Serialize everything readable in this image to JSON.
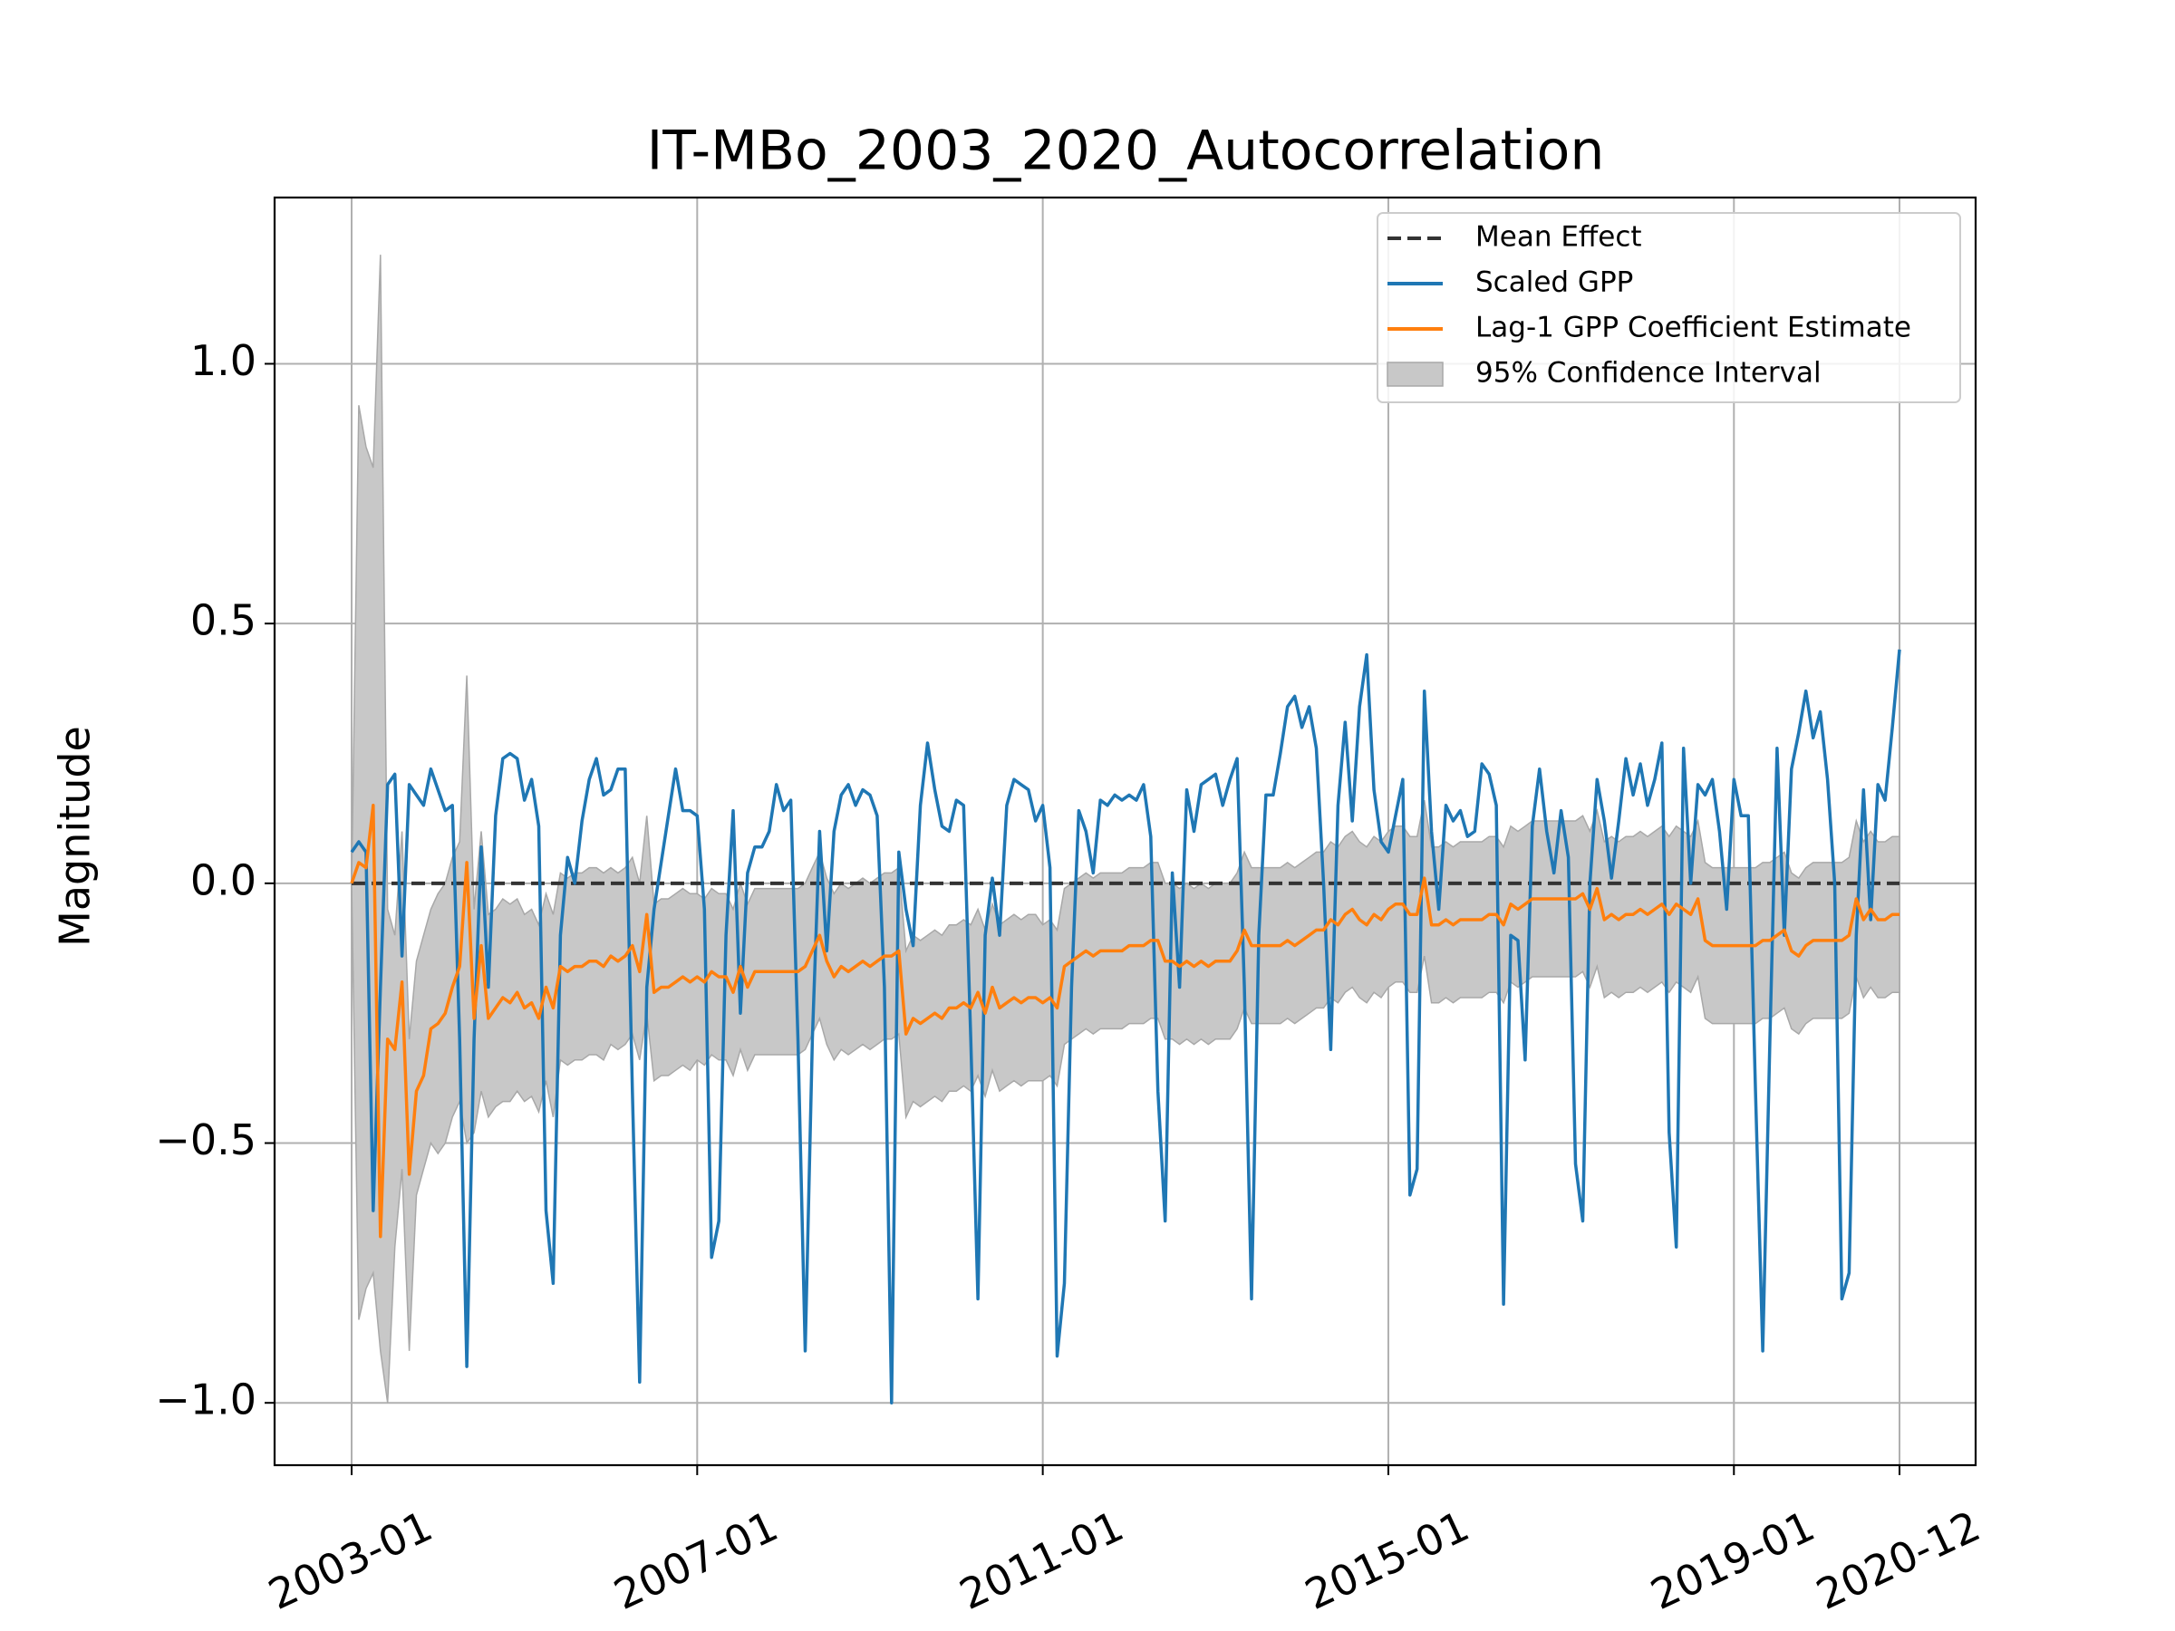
{
  "chart_data": {
    "type": "line",
    "title": "IT-MBo_2003_2020_Autocorrelation",
    "ylabel": "Magnitude",
    "x": [
      "2003-01",
      "2003-02",
      "2003-03",
      "2003-04",
      "2003-05",
      "2003-06",
      "2003-07",
      "2003-08",
      "2003-09",
      "2003-10",
      "2003-11",
      "2003-12",
      "2004-01",
      "2004-02",
      "2004-03",
      "2004-04",
      "2004-05",
      "2004-06",
      "2004-07",
      "2004-08",
      "2004-09",
      "2004-10",
      "2004-11",
      "2004-12",
      "2005-01",
      "2005-02",
      "2005-03",
      "2005-04",
      "2005-05",
      "2005-06",
      "2005-07",
      "2005-08",
      "2005-09",
      "2005-10",
      "2005-11",
      "2005-12",
      "2006-01",
      "2006-02",
      "2006-03",
      "2006-04",
      "2006-05",
      "2006-06",
      "2006-07",
      "2006-08",
      "2006-09",
      "2006-10",
      "2006-11",
      "2006-12",
      "2007-01",
      "2007-02",
      "2007-03",
      "2007-04",
      "2007-05",
      "2007-06",
      "2007-07",
      "2007-08",
      "2007-09",
      "2007-10",
      "2007-11",
      "2007-12",
      "2008-01",
      "2008-02",
      "2008-03",
      "2008-04",
      "2008-05",
      "2008-06",
      "2008-07",
      "2008-08",
      "2008-09",
      "2008-10",
      "2008-11",
      "2008-12",
      "2009-01",
      "2009-02",
      "2009-03",
      "2009-04",
      "2009-05",
      "2009-06",
      "2009-07",
      "2009-08",
      "2009-09",
      "2009-10",
      "2009-11",
      "2009-12",
      "2010-01",
      "2010-02",
      "2010-03",
      "2010-04",
      "2010-05",
      "2010-06",
      "2010-07",
      "2010-08",
      "2010-09",
      "2010-10",
      "2010-11",
      "2010-12",
      "2011-01",
      "2011-02",
      "2011-03",
      "2011-04",
      "2011-05",
      "2011-06",
      "2011-07",
      "2011-08",
      "2011-09",
      "2011-10",
      "2011-11",
      "2011-12",
      "2012-01",
      "2012-02",
      "2012-03",
      "2012-04",
      "2012-05",
      "2012-06",
      "2012-07",
      "2012-08",
      "2012-09",
      "2012-10",
      "2012-11",
      "2012-12",
      "2013-01",
      "2013-02",
      "2013-03",
      "2013-04",
      "2013-05",
      "2013-06",
      "2013-07",
      "2013-08",
      "2013-09",
      "2013-10",
      "2013-11",
      "2013-12",
      "2014-01",
      "2014-02",
      "2014-03",
      "2014-04",
      "2014-05",
      "2014-06",
      "2014-07",
      "2014-08",
      "2014-09",
      "2014-10",
      "2014-11",
      "2014-12",
      "2015-01",
      "2015-02",
      "2015-03",
      "2015-04",
      "2015-05",
      "2015-06",
      "2015-07",
      "2015-08",
      "2015-09",
      "2015-10",
      "2015-11",
      "2015-12",
      "2016-01",
      "2016-02",
      "2016-03",
      "2016-04",
      "2016-05",
      "2016-06",
      "2016-07",
      "2016-08",
      "2016-09",
      "2016-10",
      "2016-11",
      "2016-12",
      "2017-01",
      "2017-02",
      "2017-03",
      "2017-04",
      "2017-05",
      "2017-06",
      "2017-07",
      "2017-08",
      "2017-09",
      "2017-10",
      "2017-11",
      "2017-12",
      "2018-01",
      "2018-02",
      "2018-03",
      "2018-04",
      "2018-05",
      "2018-06",
      "2018-07",
      "2018-08",
      "2018-09",
      "2018-10",
      "2018-11",
      "2018-12",
      "2019-01",
      "2019-02",
      "2019-03",
      "2019-04",
      "2019-05",
      "2019-06",
      "2019-07",
      "2019-08",
      "2019-09",
      "2019-10",
      "2019-11",
      "2019-12",
      "2020-01",
      "2020-02",
      "2020-03",
      "2020-04",
      "2020-05",
      "2020-06",
      "2020-07",
      "2020-08",
      "2020-09",
      "2020-10",
      "2020-11",
      "2020-12"
    ],
    "xticks": [
      "2003-01",
      "2007-01",
      "2011-01",
      "2015-01",
      "2019-01",
      "2020-12"
    ],
    "ylim": [
      -1.12,
      1.32
    ],
    "yticks": [
      {
        "value": -1,
        "label": "−1.0"
      },
      {
        "value": -0.5,
        "label": "−0.5"
      },
      {
        "value": 0,
        "label": "0.0"
      },
      {
        "value": 0.5,
        "label": "0.5"
      },
      {
        "value": 1,
        "label": "1.0"
      }
    ],
    "grid": true,
    "legend": "upper right",
    "series": [
      {
        "name": "Mean Effect",
        "color": "#333333",
        "dashed": true,
        "value": 0
      },
      {
        "name": "Scaled GPP",
        "color": "#1f77b4",
        "values": [
          0.06,
          0.08,
          0.06,
          -0.63,
          -0.2,
          0.19,
          0.21,
          -0.14,
          0.19,
          0.17,
          0.15,
          0.22,
          0.18,
          0.14,
          0.15,
          -0.3,
          -0.93,
          -0.3,
          0.07,
          -0.2,
          0.13,
          0.24,
          0.25,
          0.24,
          0.16,
          0.2,
          0.11,
          -0.63,
          -0.77,
          -0.1,
          0.05,
          0.0,
          0.12,
          0.2,
          0.24,
          0.17,
          0.18,
          0.22,
          0.22,
          -0.4,
          -0.96,
          -0.2,
          -0.05,
          0.04,
          0.13,
          0.22,
          0.14,
          0.14,
          0.13,
          -0.05,
          -0.72,
          -0.65,
          -0.1,
          0.14,
          -0.25,
          0.02,
          0.07,
          0.07,
          0.1,
          0.19,
          0.14,
          0.16,
          -0.3,
          -0.9,
          -0.3,
          0.1,
          -0.13,
          0.1,
          0.17,
          0.19,
          0.15,
          0.18,
          0.17,
          0.13,
          -0.2,
          -1.0,
          0.06,
          -0.05,
          -0.12,
          0.15,
          0.27,
          0.18,
          0.11,
          0.1,
          0.16,
          0.15,
          -0.3,
          -0.8,
          -0.1,
          0.01,
          -0.1,
          0.15,
          0.2,
          0.19,
          0.18,
          0.12,
          0.15,
          0.03,
          -0.91,
          -0.77,
          -0.2,
          0.14,
          0.1,
          0.02,
          0.16,
          0.15,
          0.17,
          0.16,
          0.17,
          0.16,
          0.19,
          0.09,
          -0.4,
          -0.65,
          0.02,
          -0.2,
          0.18,
          0.1,
          0.19,
          0.2,
          0.21,
          0.15,
          0.2,
          0.24,
          -0.2,
          -0.8,
          -0.1,
          0.17,
          0.17,
          0.25,
          0.34,
          0.36,
          0.3,
          0.34,
          0.26,
          0.0,
          -0.32,
          0.15,
          0.31,
          0.12,
          0.34,
          0.44,
          0.18,
          0.08,
          0.06,
          0.13,
          0.2,
          -0.6,
          -0.55,
          0.37,
          0.1,
          -0.05,
          0.15,
          0.12,
          0.14,
          0.09,
          0.1,
          0.23,
          0.21,
          0.15,
          -0.81,
          -0.1,
          -0.11,
          -0.34,
          0.11,
          0.22,
          0.1,
          0.02,
          0.14,
          0.05,
          -0.54,
          -0.65,
          0.0,
          0.2,
          0.12,
          0.01,
          0.12,
          0.24,
          0.17,
          0.23,
          0.15,
          0.2,
          0.27,
          -0.48,
          -0.7,
          0.26,
          0.0,
          0.19,
          0.17,
          0.2,
          0.1,
          -0.05,
          0.2,
          0.13,
          0.13,
          -0.4,
          -0.9,
          -0.3,
          0.26,
          -0.1,
          0.22,
          0.29,
          0.37,
          0.28,
          0.33,
          0.2,
          0.0,
          -0.8,
          -0.75,
          -0.1,
          0.18,
          -0.07,
          0.19,
          0.16,
          0.3,
          0.45
        ]
      },
      {
        "name": "Lag-1 GPP Coefficient Estimate",
        "color": "#ff7f0e",
        "values": [
          0.0,
          0.04,
          0.03,
          0.15,
          -0.68,
          -0.3,
          -0.32,
          -0.19,
          -0.56,
          -0.4,
          -0.37,
          -0.28,
          -0.27,
          -0.25,
          -0.2,
          -0.16,
          0.04,
          -0.26,
          -0.12,
          -0.26,
          -0.24,
          -0.22,
          -0.23,
          -0.21,
          -0.24,
          -0.23,
          -0.26,
          -0.2,
          -0.24,
          -0.16,
          -0.17,
          -0.16,
          -0.16,
          -0.15,
          -0.15,
          -0.16,
          -0.14,
          -0.15,
          -0.14,
          -0.12,
          -0.17,
          -0.06,
          -0.21,
          -0.2,
          -0.2,
          -0.19,
          -0.18,
          -0.19,
          -0.18,
          -0.19,
          -0.17,
          -0.18,
          -0.18,
          -0.21,
          -0.16,
          -0.2,
          -0.17,
          -0.17,
          -0.17,
          -0.17,
          -0.17,
          -0.17,
          -0.17,
          -0.16,
          -0.13,
          -0.1,
          -0.15,
          -0.18,
          -0.16,
          -0.17,
          -0.16,
          -0.15,
          -0.16,
          -0.15,
          -0.14,
          -0.14,
          -0.13,
          -0.29,
          -0.26,
          -0.27,
          -0.26,
          -0.25,
          -0.26,
          -0.24,
          -0.24,
          -0.23,
          -0.24,
          -0.21,
          -0.25,
          -0.2,
          -0.24,
          -0.23,
          -0.22,
          -0.23,
          -0.22,
          -0.22,
          -0.23,
          -0.22,
          -0.24,
          -0.16,
          -0.15,
          -0.14,
          -0.13,
          -0.14,
          -0.13,
          -0.13,
          -0.13,
          -0.13,
          -0.12,
          -0.12,
          -0.12,
          -0.11,
          -0.11,
          -0.15,
          -0.15,
          -0.16,
          -0.15,
          -0.16,
          -0.15,
          -0.16,
          -0.15,
          -0.15,
          -0.15,
          -0.13,
          -0.09,
          -0.12,
          -0.12,
          -0.12,
          -0.12,
          -0.12,
          -0.11,
          -0.12,
          -0.11,
          -0.1,
          -0.09,
          -0.09,
          -0.07,
          -0.08,
          -0.06,
          -0.05,
          -0.07,
          -0.08,
          -0.06,
          -0.07,
          -0.05,
          -0.04,
          -0.04,
          -0.06,
          -0.06,
          0.01,
          -0.08,
          -0.08,
          -0.07,
          -0.08,
          -0.07,
          -0.07,
          -0.07,
          -0.07,
          -0.06,
          -0.06,
          -0.08,
          -0.04,
          -0.05,
          -0.04,
          -0.03,
          -0.03,
          -0.03,
          -0.03,
          -0.03,
          -0.03,
          -0.03,
          -0.02,
          -0.05,
          -0.01,
          -0.07,
          -0.06,
          -0.07,
          -0.06,
          -0.06,
          -0.05,
          -0.06,
          -0.05,
          -0.04,
          -0.06,
          -0.04,
          -0.05,
          -0.06,
          -0.03,
          -0.11,
          -0.12,
          -0.12,
          -0.12,
          -0.12,
          -0.12,
          -0.12,
          -0.12,
          -0.11,
          -0.11,
          -0.1,
          -0.09,
          -0.13,
          -0.14,
          -0.12,
          -0.11,
          -0.11,
          -0.11,
          -0.11,
          -0.11,
          -0.1,
          -0.03,
          -0.07,
          -0.05,
          -0.07,
          -0.07,
          -0.06,
          -0.06
        ]
      }
    ],
    "band": {
      "name": "95% Confidence Interval",
      "color": "#c8c8c8",
      "edge": "#a8a8a8",
      "upper": [
        0.0,
        0.92,
        0.84,
        0.8,
        1.21,
        -0.05,
        -0.1,
        0.1,
        -0.3,
        -0.15,
        -0.1,
        -0.05,
        -0.02,
        0.0,
        0.05,
        0.08,
        0.4,
        -0.05,
        0.1,
        -0.06,
        -0.05,
        -0.03,
        -0.04,
        -0.03,
        -0.06,
        -0.05,
        -0.08,
        -0.02,
        -0.06,
        0.02,
        0.01,
        0.02,
        0.02,
        0.03,
        0.03,
        0.02,
        0.03,
        0.02,
        0.03,
        0.05,
        0.0,
        0.13,
        -0.04,
        -0.03,
        -0.03,
        -0.02,
        -0.01,
        -0.02,
        -0.02,
        -0.03,
        -0.01,
        -0.02,
        -0.02,
        -0.05,
        0.0,
        -0.04,
        -0.01,
        -0.01,
        -0.01,
        -0.01,
        -0.01,
        -0.01,
        -0.01,
        0.0,
        0.03,
        0.06,
        0.01,
        -0.02,
        0.0,
        -0.01,
        0.0,
        0.01,
        0.0,
        0.01,
        0.02,
        0.02,
        0.03,
        -0.13,
        -0.1,
        -0.11,
        -0.1,
        -0.09,
        -0.1,
        -0.08,
        -0.08,
        -0.07,
        -0.08,
        -0.05,
        -0.09,
        -0.04,
        -0.08,
        -0.07,
        -0.06,
        -0.07,
        -0.06,
        -0.06,
        -0.08,
        -0.07,
        -0.09,
        -0.01,
        0.0,
        0.01,
        0.02,
        0.01,
        0.02,
        0.02,
        0.02,
        0.02,
        0.03,
        0.03,
        0.03,
        0.04,
        0.04,
        0.0,
        0.0,
        -0.01,
        0.0,
        -0.01,
        0.0,
        -0.01,
        0.0,
        0.0,
        0.0,
        0.02,
        0.06,
        0.03,
        0.03,
        0.03,
        0.03,
        0.03,
        0.04,
        0.03,
        0.04,
        0.05,
        0.06,
        0.06,
        0.08,
        0.07,
        0.09,
        0.1,
        0.08,
        0.07,
        0.09,
        0.08,
        0.1,
        0.11,
        0.11,
        0.09,
        0.09,
        0.16,
        0.07,
        0.07,
        0.08,
        0.07,
        0.08,
        0.08,
        0.08,
        0.08,
        0.09,
        0.09,
        0.07,
        0.11,
        0.1,
        0.11,
        0.12,
        0.12,
        0.12,
        0.12,
        0.12,
        0.12,
        0.12,
        0.13,
        0.1,
        0.14,
        0.08,
        0.09,
        0.08,
        0.09,
        0.09,
        0.1,
        0.09,
        0.1,
        0.11,
        0.09,
        0.11,
        0.1,
        0.09,
        0.12,
        0.04,
        0.03,
        0.03,
        0.03,
        0.03,
        0.03,
        0.03,
        0.03,
        0.04,
        0.04,
        0.05,
        0.06,
        0.02,
        0.01,
        0.03,
        0.04,
        0.04,
        0.04,
        0.04,
        0.04,
        0.05,
        0.12,
        0.08,
        0.1,
        0.08,
        0.08,
        0.09,
        0.09
      ],
      "lower": [
        0.0,
        -0.84,
        -0.78,
        -0.75,
        -0.9,
        -1.0,
        -0.7,
        -0.55,
        -0.9,
        -0.6,
        -0.55,
        -0.5,
        -0.52,
        -0.5,
        -0.45,
        -0.42,
        -0.5,
        -0.48,
        -0.4,
        -0.45,
        -0.43,
        -0.42,
        -0.42,
        -0.4,
        -0.42,
        -0.41,
        -0.44,
        -0.38,
        -0.45,
        -0.34,
        -0.35,
        -0.34,
        -0.34,
        -0.33,
        -0.33,
        -0.34,
        -0.31,
        -0.32,
        -0.31,
        -0.29,
        -0.34,
        -0.25,
        -0.38,
        -0.37,
        -0.37,
        -0.36,
        -0.35,
        -0.36,
        -0.34,
        -0.35,
        -0.33,
        -0.34,
        -0.34,
        -0.37,
        -0.32,
        -0.36,
        -0.33,
        -0.33,
        -0.33,
        -0.33,
        -0.33,
        -0.33,
        -0.33,
        -0.32,
        -0.29,
        -0.26,
        -0.31,
        -0.34,
        -0.32,
        -0.33,
        -0.32,
        -0.31,
        -0.32,
        -0.31,
        -0.3,
        -0.3,
        -0.29,
        -0.45,
        -0.42,
        -0.43,
        -0.42,
        -0.41,
        -0.42,
        -0.4,
        -0.4,
        -0.39,
        -0.4,
        -0.37,
        -0.41,
        -0.36,
        -0.4,
        -0.39,
        -0.38,
        -0.39,
        -0.38,
        -0.38,
        -0.38,
        -0.37,
        -0.39,
        -0.31,
        -0.3,
        -0.29,
        -0.28,
        -0.29,
        -0.28,
        -0.28,
        -0.28,
        -0.28,
        -0.27,
        -0.27,
        -0.27,
        -0.26,
        -0.26,
        -0.3,
        -0.3,
        -0.31,
        -0.3,
        -0.31,
        -0.3,
        -0.31,
        -0.3,
        -0.3,
        -0.3,
        -0.28,
        -0.24,
        -0.27,
        -0.27,
        -0.27,
        -0.27,
        -0.27,
        -0.26,
        -0.27,
        -0.26,
        -0.25,
        -0.24,
        -0.24,
        -0.22,
        -0.23,
        -0.21,
        -0.2,
        -0.22,
        -0.23,
        -0.21,
        -0.22,
        -0.2,
        -0.19,
        -0.19,
        -0.21,
        -0.21,
        -0.14,
        -0.23,
        -0.23,
        -0.22,
        -0.23,
        -0.22,
        -0.22,
        -0.22,
        -0.22,
        -0.21,
        -0.21,
        -0.23,
        -0.19,
        -0.2,
        -0.19,
        -0.18,
        -0.18,
        -0.18,
        -0.18,
        -0.18,
        -0.18,
        -0.18,
        -0.17,
        -0.2,
        -0.16,
        -0.22,
        -0.21,
        -0.22,
        -0.21,
        -0.21,
        -0.2,
        -0.21,
        -0.2,
        -0.19,
        -0.21,
        -0.19,
        -0.2,
        -0.21,
        -0.18,
        -0.26,
        -0.27,
        -0.27,
        -0.27,
        -0.27,
        -0.27,
        -0.27,
        -0.27,
        -0.26,
        -0.26,
        -0.25,
        -0.24,
        -0.28,
        -0.29,
        -0.27,
        -0.26,
        -0.26,
        -0.26,
        -0.26,
        -0.26,
        -0.25,
        -0.18,
        -0.22,
        -0.2,
        -0.22,
        -0.22,
        -0.21,
        -0.21
      ]
    }
  }
}
